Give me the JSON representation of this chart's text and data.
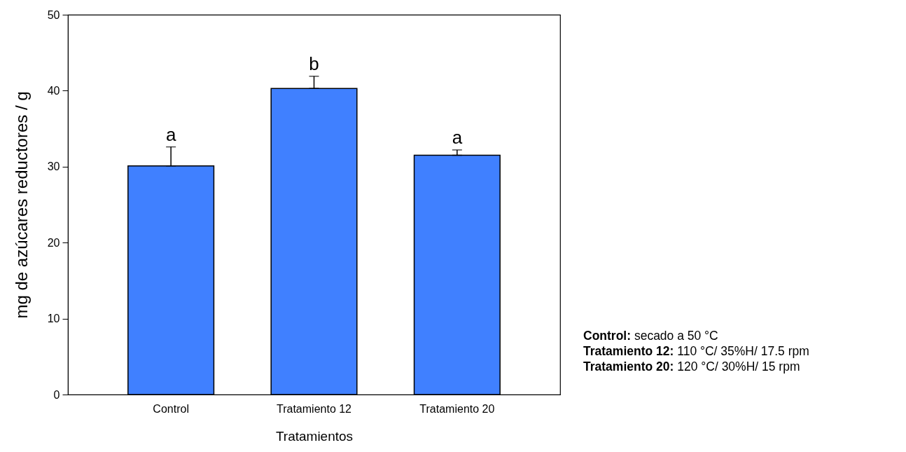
{
  "chart_data": {
    "type": "bar",
    "xlabel": "Tratamientos",
    "ylabel": "mg de azúcares reductores / g",
    "categories": [
      "Control",
      "Tratamiento 12",
      "Tratamiento 20"
    ],
    "values": [
      30.1,
      40.3,
      31.5
    ],
    "errors": [
      [
        30.1,
        32.6
      ],
      [
        40.3,
        41.9
      ],
      [
        31.5,
        32.2
      ]
    ],
    "color": "#4080ff",
    "ylim": [
      0,
      50
    ],
    "yticks": [
      0,
      10,
      20,
      30,
      40,
      50
    ],
    "grid": false,
    "annotations": [
      "a",
      "b",
      "a",
      "Control: secado a 50 °C",
      "Tratamiento 12: 110 °C/ 35%H/ 17.5 rpm",
      "Tratamiento 20: 120 °C/ 30%H/ 15 rpm"
    ]
  }
}
